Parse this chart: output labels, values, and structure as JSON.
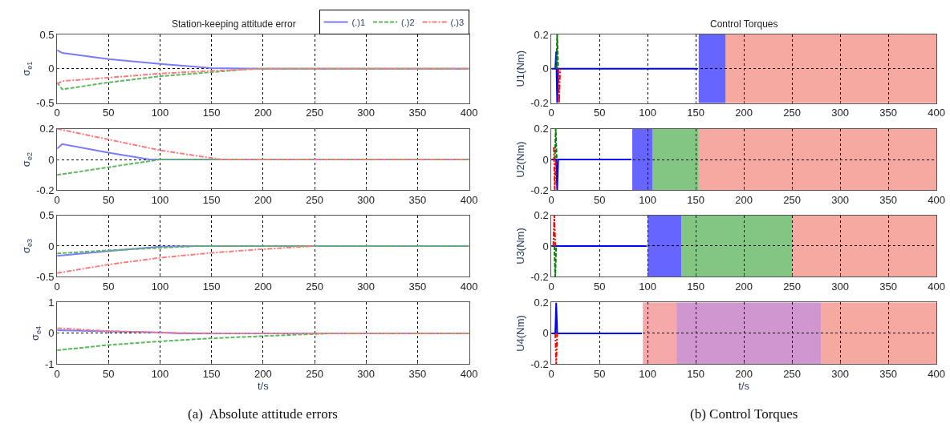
{
  "chart_data": [
    {
      "type": "line",
      "title": "Station-keeping attitude error",
      "ylabel": "σ$_{e1}$",
      "xlim": [
        0,
        400
      ],
      "xticks": [
        0,
        50,
        100,
        150,
        200,
        250,
        300,
        350,
        400
      ],
      "ylim": [
        -0.5,
        0.5
      ],
      "yticks": [
        -0.5,
        0,
        0.5
      ],
      "grid": true,
      "legend": "top right",
      "series": [
        {
          "name": "(.)1",
          "color": "#7b7bff",
          "line_style": "solid",
          "x": [
            0,
            5,
            50,
            100,
            150,
            200,
            400
          ],
          "values": [
            0.27,
            0.23,
            0.14,
            0.07,
            0.01,
            0,
            0
          ]
        },
        {
          "name": "(.)2",
          "color": "#5cb85c",
          "line_style": "dashed",
          "x": [
            0,
            5,
            50,
            100,
            150,
            190,
            400
          ],
          "values": [
            -0.2,
            -0.3,
            -0.2,
            -0.11,
            -0.05,
            0,
            0
          ]
        },
        {
          "name": "(.)3",
          "color": "#ff7b7b",
          "line_style": "dashdot",
          "x": [
            0,
            5,
            50,
            100,
            150,
            200,
            400
          ],
          "values": [
            -0.22,
            -0.18,
            -0.13,
            -0.07,
            -0.03,
            0,
            0
          ]
        }
      ]
    },
    {
      "type": "line",
      "ylabel": "σ$_{e2}$",
      "xlim": [
        0,
        400
      ],
      "xticks": [
        0,
        50,
        100,
        150,
        200,
        250,
        300,
        350,
        400
      ],
      "ylim": [
        -0.2,
        0.2
      ],
      "yticks": [
        -0.2,
        0,
        0.2
      ],
      "grid": true,
      "series": [
        {
          "color": "#7b7bff",
          "line_style": "solid",
          "x": [
            0,
            5,
            50,
            90,
            400
          ],
          "values": [
            0.07,
            0.1,
            0.045,
            0,
            0
          ]
        },
        {
          "color": "#5cb85c",
          "line_style": "dashed",
          "x": [
            0,
            50,
            100,
            400
          ],
          "values": [
            -0.1,
            -0.05,
            0,
            0
          ]
        },
        {
          "color": "#ff7b7b",
          "line_style": "dashdot",
          "x": [
            0,
            50,
            100,
            150,
            160,
            400
          ],
          "values": [
            0.2,
            0.13,
            0.06,
            0.01,
            0,
            0
          ]
        }
      ]
    },
    {
      "type": "line",
      "ylabel": "σ$_{e3}$",
      "xlim": [
        0,
        400
      ],
      "xticks": [
        0,
        50,
        100,
        150,
        200,
        250,
        300,
        350,
        400
      ],
      "ylim": [
        -0.5,
        0.5
      ],
      "yticks": [
        -0.5,
        0,
        0.5
      ],
      "grid": true,
      "series": [
        {
          "color": "#7b7bff",
          "line_style": "solid",
          "x": [
            0,
            50,
            100,
            135,
            400
          ],
          "values": [
            -0.16,
            -0.08,
            -0.01,
            0,
            0
          ]
        },
        {
          "color": "#5cb85c",
          "line_style": "dashed",
          "x": [
            0,
            50,
            100,
            135,
            400
          ],
          "values": [
            -0.12,
            -0.07,
            -0.03,
            0,
            0
          ]
        },
        {
          "color": "#ff7b7b",
          "line_style": "dashdot",
          "x": [
            0,
            50,
            100,
            150,
            200,
            250
          ],
          "values": [
            -0.44,
            -0.3,
            -0.19,
            -0.11,
            -0.05,
            0
          ]
        }
      ]
    },
    {
      "type": "line",
      "ylabel": "σ$_{e4}$",
      "xlabel": "t/s",
      "xlim": [
        0,
        400
      ],
      "xticks": [
        0,
        50,
        100,
        150,
        200,
        250,
        300,
        350,
        400
      ],
      "ylim": [
        -1,
        1
      ],
      "yticks": [
        -1,
        0,
        1
      ],
      "grid": true,
      "annotations": [
        "(a)  Absolute attitude errors"
      ],
      "series": [
        {
          "color": "#7b7bff",
          "line_style": "solid",
          "x": [
            0,
            50,
            100,
            120,
            400
          ],
          "values": [
            0.1,
            0.06,
            0.03,
            0,
            0
          ]
        },
        {
          "color": "#5cb85c",
          "line_style": "dashed",
          "x": [
            0,
            50,
            100,
            150,
            200,
            250,
            270,
            400
          ],
          "values": [
            -0.55,
            -0.38,
            -0.26,
            -0.16,
            -0.09,
            -0.02,
            0,
            0
          ]
        },
        {
          "color": "#ff7b7b",
          "line_style": "dashdot",
          "x": [
            0,
            50,
            100,
            150,
            400
          ],
          "values": [
            0.17,
            0.07,
            0.02,
            0,
            0
          ]
        }
      ]
    },
    {
      "type": "line",
      "title": "Control Torques",
      "ylabel": "U1(Nm)",
      "xlim": [
        0,
        400
      ],
      "xticks": [
        0,
        50,
        100,
        150,
        200,
        250,
        300,
        350,
        400
      ],
      "ylim": [
        -0.2,
        0.2
      ],
      "yticks": [
        -0.2,
        0,
        0.2
      ],
      "grid": true,
      "bands": [
        {
          "axis": "x",
          "from": 153,
          "to": 181,
          "color": "#0000ff"
        },
        {
          "axis": "x",
          "from": 181,
          "to": 400,
          "color": "#f07060"
        }
      ],
      "series": [
        {
          "color": "#0000ff",
          "line_style": "solid",
          "x": [
            0,
            4,
            5,
            6,
            7,
            152
          ],
          "values": [
            0,
            0,
            0.1,
            -0.2,
            0,
            0
          ]
        },
        {
          "color": "#008000",
          "line_style": "dashed",
          "x": [
            5,
            6,
            7
          ],
          "values": [
            0,
            0.2,
            0
          ]
        },
        {
          "color": "#ff0000",
          "line_style": "dashdot",
          "x": [
            7,
            8,
            9
          ],
          "values": [
            0,
            -0.2,
            0
          ]
        }
      ]
    },
    {
      "type": "line",
      "ylabel": "U2(Nm)",
      "xlim": [
        0,
        400
      ],
      "xticks": [
        0,
        50,
        100,
        150,
        200,
        250,
        300,
        350,
        400
      ],
      "ylim": [
        -0.2,
        0.2
      ],
      "yticks": [
        -0.2,
        0,
        0.2
      ],
      "grid": true,
      "bands": [
        {
          "axis": "x",
          "from": 84,
          "to": 105,
          "color": "#0000ff"
        },
        {
          "axis": "x",
          "from": 105,
          "to": 153,
          "color": "#30a030"
        },
        {
          "axis": "x",
          "from": 153,
          "to": 400,
          "color": "#f07060"
        }
      ],
      "series": [
        {
          "color": "#0000ff",
          "line_style": "solid",
          "x": [
            0,
            5,
            6,
            7,
            83
          ],
          "values": [
            0,
            0,
            -0.2,
            0,
            0
          ]
        },
        {
          "color": "#008000",
          "line_style": "dashed",
          "x": [
            3.5,
            4.5,
            5.5
          ],
          "values": [
            0,
            0.2,
            0
          ]
        },
        {
          "color": "#ff0000",
          "line_style": "dashdot",
          "x": [
            2.5,
            3.5,
            4.5
          ],
          "values": [
            0.08,
            -0.2,
            0
          ]
        }
      ]
    },
    {
      "type": "line",
      "ylabel": "U3(Nm)",
      "xlim": [
        0,
        400
      ],
      "xticks": [
        0,
        50,
        100,
        150,
        200,
        250,
        300,
        350,
        400
      ],
      "ylim": [
        -0.2,
        0.2
      ],
      "yticks": [
        -0.2,
        0,
        0.2
      ],
      "grid": true,
      "bands": [
        {
          "axis": "x",
          "from": 100,
          "to": 135,
          "color": "#0000ff"
        },
        {
          "axis": "x",
          "from": 135,
          "to": 250,
          "color": "#30a030"
        },
        {
          "axis": "x",
          "from": 250,
          "to": 400,
          "color": "#f07060"
        }
      ],
      "series": [
        {
          "color": "#0000ff",
          "line_style": "solid",
          "x": [
            0,
            99
          ],
          "values": [
            0,
            0
          ]
        },
        {
          "color": "#008000",
          "line_style": "dashed",
          "x": [
            3,
            4,
            5
          ],
          "values": [
            0,
            -0.2,
            0
          ]
        },
        {
          "color": "#ff0000",
          "line_style": "dashdot",
          "x": [
            2,
            3,
            4
          ],
          "values": [
            0,
            0.2,
            0
          ]
        }
      ]
    },
    {
      "type": "line",
      "ylabel": "U4(Nm)",
      "xlabel": "t/s",
      "xlim": [
        0,
        400
      ],
      "xticks": [
        0,
        50,
        100,
        150,
        200,
        250,
        300,
        350,
        400
      ],
      "ylim": [
        -0.2,
        0.2
      ],
      "yticks": [
        -0.2,
        0,
        0.2
      ],
      "grid": true,
      "annotations": [
        "(b) Control Torques"
      ],
      "bands": [
        {
          "axis": "x",
          "from": 95,
          "to": 130,
          "color": "#f07070"
        },
        {
          "axis": "x",
          "from": 130,
          "to": 280,
          "color": "#b050b0"
        },
        {
          "axis": "x",
          "from": 280,
          "to": 400,
          "color": "#f07060"
        }
      ],
      "series": [
        {
          "color": "#0000ff",
          "line_style": "solid",
          "x": [
            0,
            4,
            5,
            6,
            94
          ],
          "values": [
            0,
            0,
            0.2,
            0,
            0
          ]
        },
        {
          "color": "#ff0000",
          "line_style": "dashdot",
          "x": [
            4,
            5,
            6
          ],
          "values": [
            0,
            -0.2,
            0
          ]
        }
      ]
    }
  ]
}
